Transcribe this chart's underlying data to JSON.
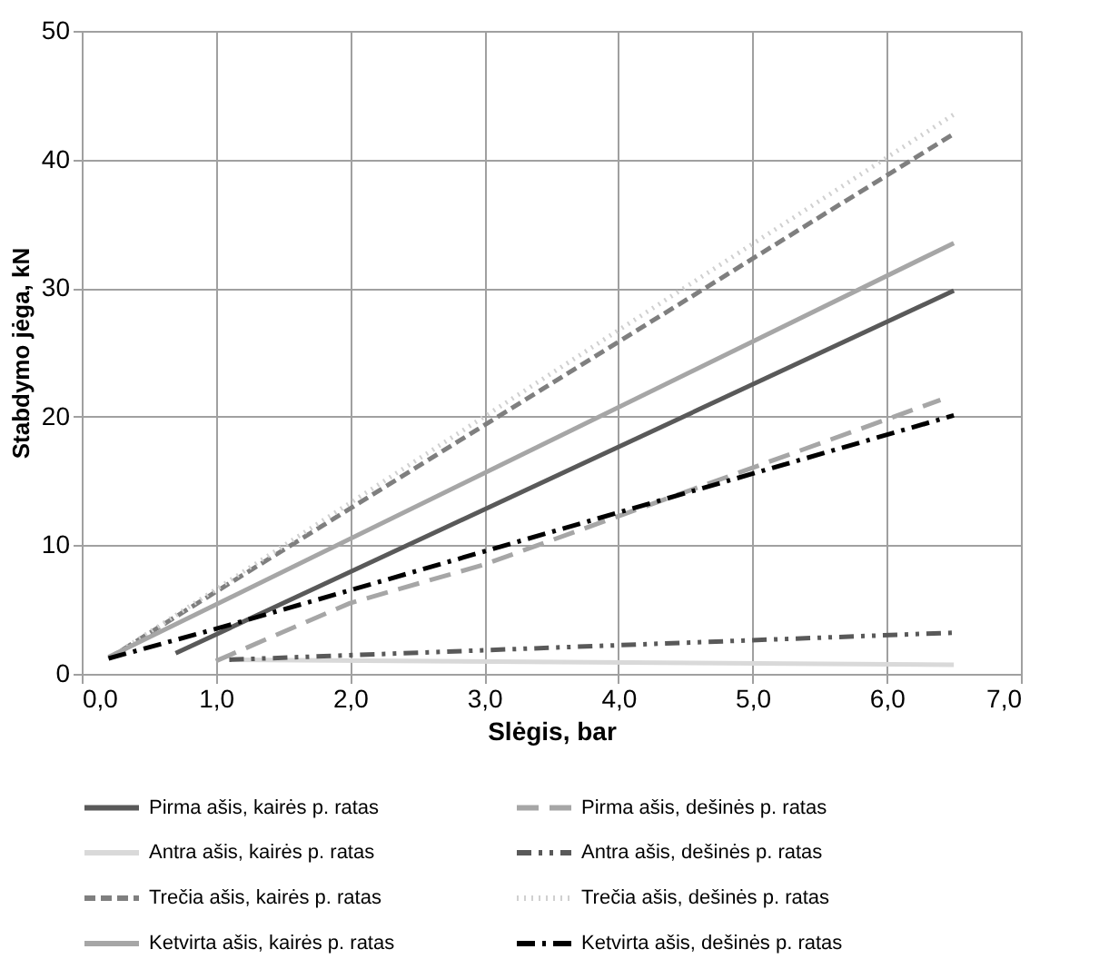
{
  "chart_data": {
    "type": "line",
    "xlabel": "Slėgis, bar",
    "ylabel": "Stabdymo jėga, kN",
    "xlim": [
      0,
      7
    ],
    "ylim": [
      0,
      50
    ],
    "xticks": [
      {
        "value": 0,
        "label": "0,0"
      },
      {
        "value": 1,
        "label": "1,0"
      },
      {
        "value": 2,
        "label": "2,0"
      },
      {
        "value": 3,
        "label": "3,0"
      },
      {
        "value": 4,
        "label": "4,0"
      },
      {
        "value": 5,
        "label": "5,0"
      },
      {
        "value": 6,
        "label": "6,0"
      },
      {
        "value": 7,
        "label": "7,0"
      }
    ],
    "yticks": [
      0,
      10,
      20,
      30,
      40,
      50
    ],
    "grid": true,
    "legend": "bottom",
    "marker": "none",
    "series": [
      {
        "name": "Pirma ašis, kairės p. ratas",
        "color": "#595959",
        "line_style": "solid",
        "x": [
          0.7,
          6.5
        ],
        "values": [
          1.6,
          29.8
        ]
      },
      {
        "name": "Pirma ašis, dešinės p. ratas",
        "color": "#a6a6a6",
        "line_style": "longdash",
        "x": [
          1.0,
          2.0,
          3.0,
          6.4
        ],
        "values": [
          1.0,
          5.5,
          8.5,
          21.3
        ]
      },
      {
        "name": "Antra ašis, kairės p. ratas",
        "color": "#d9d9d9",
        "line_style": "solid",
        "x": [
          1.1,
          6.5
        ],
        "values": [
          1.1,
          0.7
        ]
      },
      {
        "name": "Antra ašis, dešinės p. ratas",
        "color": "#595959",
        "line_style": "dashdotdot",
        "x": [
          1.1,
          6.5
        ],
        "values": [
          1.1,
          3.2
        ]
      },
      {
        "name": "Trečia ašis, kairės p. ratas",
        "color": "#7f7f7f",
        "line_style": "dashed",
        "x": [
          0.2,
          6.5
        ],
        "values": [
          1.2,
          42.0
        ]
      },
      {
        "name": "Trečia ašis, dešinės p. ratas",
        "color": "#d0d0d0",
        "line_style": "dotted",
        "x": [
          0.2,
          6.5
        ],
        "values": [
          1.2,
          43.5
        ]
      },
      {
        "name": "Ketvirta ašis, kairės p. ratas",
        "color": "#a6a6a6",
        "line_style": "solid",
        "x": [
          0.2,
          6.5
        ],
        "values": [
          1.3,
          33.5
        ]
      },
      {
        "name": "Ketvirta ašis, dešinės p. ratas",
        "color": "#000000",
        "line_style": "dashdot",
        "x": [
          0.2,
          1.0,
          2.0,
          6.5
        ],
        "values": [
          1.2,
          3.5,
          6.5,
          20.1
        ]
      }
    ]
  }
}
